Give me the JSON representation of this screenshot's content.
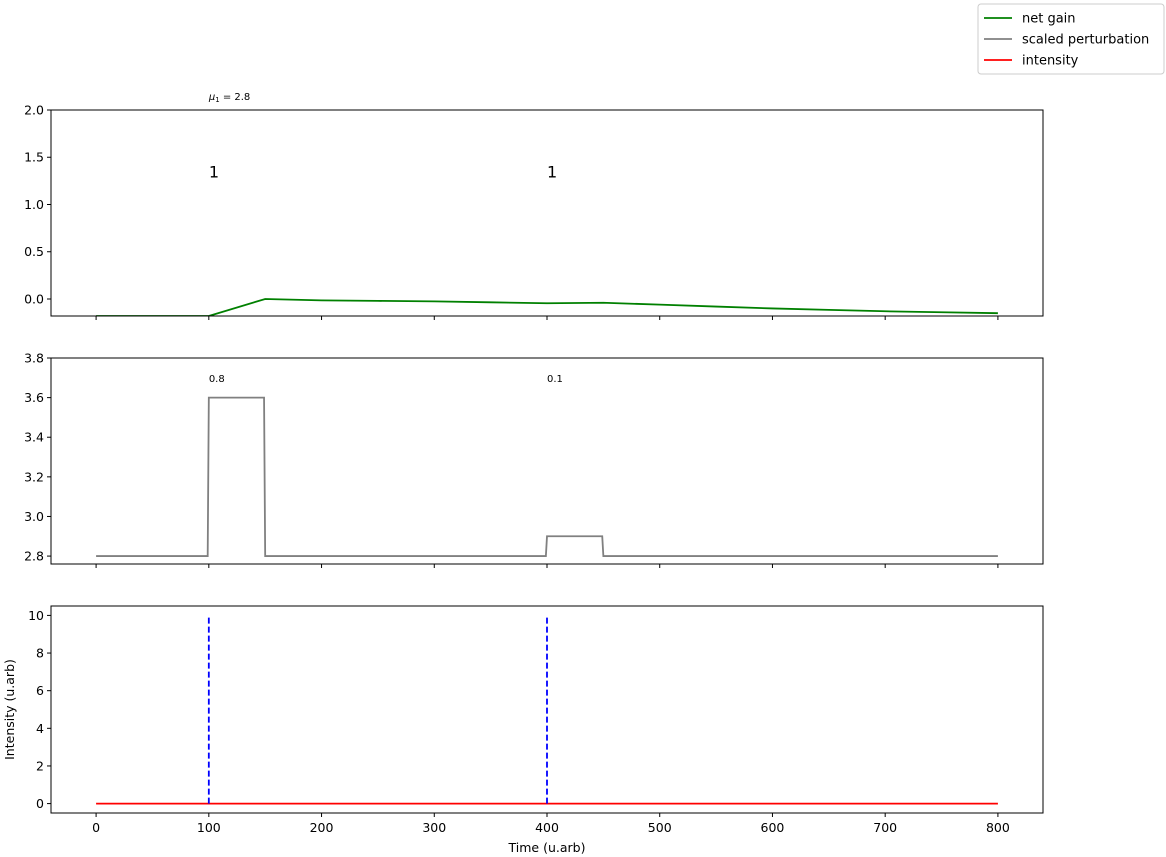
{
  "chart_data": [
    {
      "type": "line",
      "xlim": [
        -40,
        840
      ],
      "ylim": [
        -0.18,
        2.0
      ],
      "yticks": [
        0.0,
        0.5,
        1.0,
        1.5,
        2.0
      ],
      "ytick_labels": [
        "0.0",
        "0.5",
        "1.0",
        "1.5",
        "2.0"
      ],
      "xticks": [
        0,
        100,
        200,
        300,
        400,
        500,
        600,
        700,
        800
      ],
      "show_xtick_labels": false,
      "series": [
        {
          "name": "net gain",
          "color": "#008000",
          "x": [
            0,
            100,
            150,
            200,
            250,
            300,
            350,
            400,
            450,
            500,
            550,
            600,
            650,
            700,
            750,
            800
          ],
          "y": [
            -0.18,
            -0.18,
            0.0,
            -0.015,
            -0.02,
            -0.025,
            -0.035,
            -0.045,
            -0.04,
            -0.06,
            -0.08,
            -0.1,
            -0.115,
            -0.13,
            -0.14,
            -0.15
          ]
        }
      ],
      "annotations": [
        {
          "text": "1",
          "x": 100,
          "y": 1.35,
          "style": "count"
        },
        {
          "text": "1",
          "x": 400,
          "y": 1.35,
          "style": "count"
        }
      ],
      "header_annotations": [
        {
          "text": "μ1 = 2.8",
          "x": 100
        }
      ]
    },
    {
      "type": "line",
      "xlim": [
        -40,
        840
      ],
      "ylim": [
        2.76,
        3.8
      ],
      "yticks": [
        2.8,
        3.0,
        3.2,
        3.4,
        3.6,
        3.8
      ],
      "ytick_labels": [
        "2.8",
        "3.0",
        "3.2",
        "3.4",
        "3.6",
        "3.8"
      ],
      "xticks": [
        0,
        100,
        200,
        300,
        400,
        500,
        600,
        700,
        800
      ],
      "show_xtick_labels": false,
      "series": [
        {
          "name": "scaled perturbation",
          "color": "#808080",
          "x": [
            0,
            99,
            100,
            149,
            150,
            399,
            400,
            449,
            450,
            800
          ],
          "y": [
            2.8,
            2.8,
            3.6,
            3.6,
            2.8,
            2.8,
            2.9,
            2.9,
            2.8,
            2.8
          ]
        }
      ],
      "annotations": [
        {
          "text": "0.8",
          "x": 100,
          "y": 3.7,
          "style": "small"
        },
        {
          "text": "0.1",
          "x": 400,
          "y": 3.7,
          "style": "small"
        }
      ]
    },
    {
      "type": "line",
      "xlim": [
        -40,
        840
      ],
      "ylim": [
        -0.5,
        10.5
      ],
      "yticks": [
        0,
        2,
        4,
        6,
        8,
        10
      ],
      "ytick_labels": [
        "0",
        "2",
        "4",
        "6",
        "8",
        "10"
      ],
      "xticks": [
        0,
        100,
        200,
        300,
        400,
        500,
        600,
        700,
        800
      ],
      "xtick_labels": [
        "0",
        "100",
        "200",
        "300",
        "400",
        "500",
        "600",
        "700",
        "800"
      ],
      "show_xtick_labels": true,
      "xlabel": "Time (u.arb)",
      "ylabel": "Intensity (u.arb)",
      "series": [
        {
          "name": "intensity",
          "color": "#ff0000",
          "x": [
            0,
            800
          ],
          "y": [
            0,
            0
          ]
        }
      ],
      "vlines": [
        {
          "x": 100,
          "ymin": 0,
          "ymax": 10,
          "color": "#0000ff",
          "style": "dashed"
        },
        {
          "x": 400,
          "ymin": 0,
          "ymax": 10,
          "color": "#0000ff",
          "style": "dashed"
        }
      ]
    }
  ],
  "legend": {
    "placement": "top-right",
    "entries": [
      {
        "label": "net gain",
        "color": "#008000"
      },
      {
        "label": "scaled perturbation",
        "color": "#808080"
      },
      {
        "label": "intensity",
        "color": "#ff0000"
      }
    ]
  }
}
